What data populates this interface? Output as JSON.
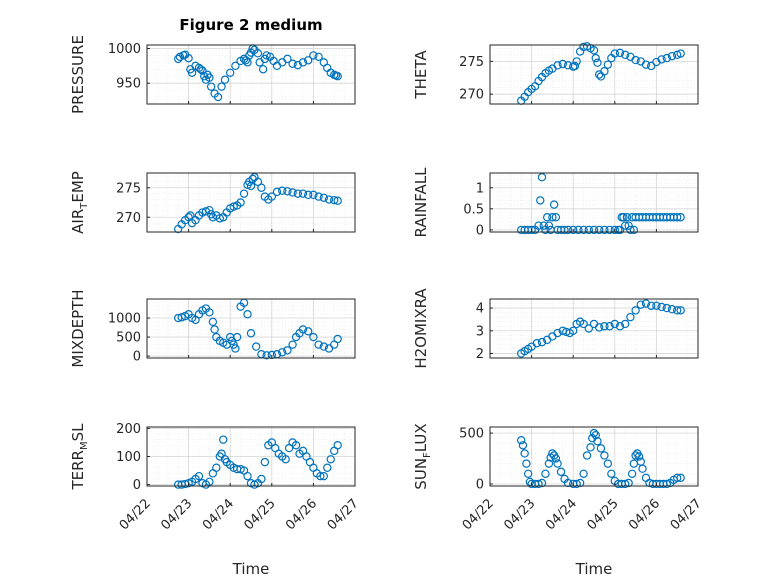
{
  "figure": {
    "title": "Figure 2 medium",
    "x_label": "Time",
    "x_ticks": [
      "04/22",
      "04/23",
      "04/24",
      "04/25",
      "04/26",
      "04/27"
    ]
  },
  "colors": {
    "marker": "#0072BD",
    "axis": "#262626",
    "grid": "#d6d6d6",
    "minor_grid": "#e6e6e6"
  },
  "chart_data": [
    {
      "type": "scatter",
      "marker": "circle",
      "ylabel": "PRESSURE",
      "ylim": [
        920,
        1005
      ],
      "yticks": [
        950,
        1000
      ],
      "grid": true,
      "minor_grid": true,
      "x": [
        "04/22 18:00",
        "04/22 19:00",
        "04/22 21:00",
        "04/22 22:00",
        "04/23 00:00",
        "04/23 01:00",
        "04/23 02:00",
        "04/23 04:00",
        "04/23 06:00",
        "04/23 07:00",
        "04/23 08:00",
        "04/23 09:00",
        "04/23 10:00",
        "04/23 11:00",
        "04/23 12:00",
        "04/23 13:00",
        "04/23 15:00",
        "04/23 17:00",
        "04/23 19:00",
        "04/23 21:00",
        "04/24 00:00",
        "04/24 03:00",
        "04/24 06:00",
        "04/24 08:00",
        "04/24 09:00",
        "04/24 10:00",
        "04/24 11:00",
        "04/24 12:00",
        "04/24 13:00",
        "04/24 14:00",
        "04/24 16:00",
        "04/24 17:00",
        "04/24 19:00",
        "04/24 20:00",
        "04/24 21:00",
        "04/24 23:00",
        "04/25 01:00",
        "04/25 03:00",
        "04/25 06:00",
        "04/25 09:00",
        "04/25 12:00",
        "04/25 15:00",
        "04/25 18:00",
        "04/25 21:00",
        "04/26 00:00",
        "04/26 03:00",
        "04/26 06:00",
        "04/26 08:00",
        "04/26 10:00",
        "04/26 12:00",
        "04/26 13:00",
        "04/26 14:00"
      ],
      "y": [
        985,
        988,
        990,
        991,
        986,
        970,
        965,
        975,
        972,
        970,
        968,
        960,
        955,
        962,
        958,
        945,
        935,
        930,
        945,
        955,
        965,
        975,
        982,
        985,
        983,
        980,
        990,
        994,
        1000,
        998,
        993,
        980,
        970,
        985,
        990,
        988,
        982,
        975,
        980,
        985,
        978,
        976,
        980,
        983,
        990,
        988,
        980,
        972,
        965,
        962,
        961,
        960
      ]
    },
    {
      "type": "scatter",
      "marker": "circle",
      "ylabel": "THETA",
      "ylim": [
        268.5,
        277.5
      ],
      "yticks": [
        270,
        275
      ],
      "grid": true,
      "minor_grid": true,
      "x": [
        "04/22 18:00",
        "04/22 20:00",
        "04/22 22:00",
        "04/23 00:00",
        "04/23 02:00",
        "04/23 04:00",
        "04/23 06:00",
        "04/23 08:00",
        "04/23 10:00",
        "04/23 12:00",
        "04/23 15:00",
        "04/23 18:00",
        "04/23 21:00",
        "04/24 00:00",
        "04/24 01:00",
        "04/24 02:00",
        "04/24 04:00",
        "04/24 06:00",
        "04/24 08:00",
        "04/24 10:00",
        "04/24 12:00",
        "04/24 13:00",
        "04/24 14:00",
        "04/24 15:00",
        "04/24 16:00",
        "04/24 18:00",
        "04/24 20:00",
        "04/24 22:00",
        "04/25 00:00",
        "04/25 03:00",
        "04/25 06:00",
        "04/25 09:00",
        "04/25 12:00",
        "04/25 15:00",
        "04/25 18:00",
        "04/25 21:00",
        "04/26 00:00",
        "04/26 03:00",
        "04/26 06:00",
        "04/26 09:00",
        "04/26 12:00",
        "04/26 14:00"
      ],
      "y": [
        269.0,
        269.6,
        270.3,
        270.8,
        271.2,
        272.0,
        272.6,
        273.2,
        273.6,
        273.9,
        274.4,
        274.6,
        274.4,
        274.2,
        274.3,
        275.0,
        276.5,
        277.2,
        277.3,
        277.0,
        276.7,
        275.5,
        274.8,
        273.0,
        272.7,
        273.5,
        274.5,
        275.5,
        276.2,
        276.3,
        276.0,
        275.7,
        275.2,
        275.0,
        274.5,
        274.3,
        274.9,
        275.3,
        275.5,
        275.8,
        276.0,
        276.2
      ]
    },
    {
      "type": "scatter",
      "marker": "circle",
      "ylabel": "AIR_TEMP",
      "ylim": [
        267.5,
        277.5
      ],
      "yticks": [
        270,
        275
      ],
      "grid": true,
      "minor_grid": true,
      "x": [
        "04/22 18:00",
        "04/22 20:00",
        "04/22 22:00",
        "04/23 00:00",
        "04/23 01:00",
        "04/23 02:00",
        "04/23 04:00",
        "04/23 06:00",
        "04/23 08:00",
        "04/23 10:00",
        "04/23 12:00",
        "04/23 13:00",
        "04/23 14:00",
        "04/23 16:00",
        "04/23 18:00",
        "04/23 20:00",
        "04/23 22:00",
        "04/24 00:00",
        "04/24 02:00",
        "04/24 04:00",
        "04/24 06:00",
        "04/24 08:00",
        "04/24 10:00",
        "04/24 11:00",
        "04/24 12:00",
        "04/24 13:00",
        "04/24 14:00",
        "04/24 16:00",
        "04/24 18:00",
        "04/24 20:00",
        "04/24 22:00",
        "04/25 00:00",
        "04/25 03:00",
        "04/25 06:00",
        "04/25 09:00",
        "04/25 12:00",
        "04/25 15:00",
        "04/25 18:00",
        "04/25 21:00",
        "04/26 00:00",
        "04/26 03:00",
        "04/26 06:00",
        "04/26 09:00",
        "04/26 12:00",
        "04/26 14:00"
      ],
      "y": [
        268.0,
        268.8,
        269.5,
        270.0,
        270.3,
        269.0,
        269.5,
        270.3,
        270.8,
        271.0,
        271.2,
        270.5,
        270.0,
        270.3,
        269.8,
        270.0,
        270.8,
        271.5,
        271.8,
        272.0,
        272.5,
        274.0,
        275.5,
        276.0,
        275.3,
        276.5,
        276.8,
        276.0,
        275.0,
        273.5,
        273.0,
        273.5,
        274.3,
        274.5,
        274.4,
        274.2,
        274.0,
        274.0,
        273.8,
        273.8,
        273.5,
        273.3,
        273.0,
        272.9,
        272.8
      ]
    },
    {
      "type": "scatter",
      "marker": "circle",
      "ylabel": "RAINFALL",
      "ylim": [
        -0.05,
        1.35
      ],
      "yticks": [
        0,
        0.5,
        1
      ],
      "grid": true,
      "minor_grid": true,
      "x": [
        "04/22 18:00",
        "04/22 20:00",
        "04/22 22:00",
        "04/23 00:00",
        "04/23 02:00",
        "04/23 04:00",
        "04/23 05:00",
        "04/23 06:00",
        "04/23 07:00",
        "04/23 08:00",
        "04/23 09:00",
        "04/23 10:00",
        "04/23 11:00",
        "04/23 12:00",
        "04/23 13:00",
        "04/23 14:00",
        "04/23 15:00",
        "04/23 17:00",
        "04/23 19:00",
        "04/23 21:00",
        "04/24 00:00",
        "04/24 03:00",
        "04/24 06:00",
        "04/24 09:00",
        "04/24 12:00",
        "04/24 15:00",
        "04/24 18:00",
        "04/24 21:00",
        "04/25 00:00",
        "04/25 02:00",
        "04/25 03:00",
        "04/25 04:00",
        "04/25 05:00",
        "04/25 06:00",
        "04/25 07:00",
        "04/25 08:00",
        "04/25 09:00",
        "04/25 10:00",
        "04/25 11:00",
        "04/25 12:00",
        "04/25 14:00",
        "04/25 16:00",
        "04/25 18:00",
        "04/25 20:00",
        "04/25 22:00",
        "04/26 00:00",
        "04/26 02:00",
        "04/26 04:00",
        "04/26 06:00",
        "04/26 08:00",
        "04/26 10:00",
        "04/26 12:00",
        "04/26 14:00"
      ],
      "y": [
        0,
        0,
        0,
        0,
        0,
        0.1,
        0.7,
        1.25,
        0.1,
        0,
        0.3,
        0.1,
        0,
        0.3,
        0.6,
        0.3,
        0,
        0,
        0,
        0,
        0,
        0,
        0,
        0,
        0,
        0,
        0,
        0,
        0,
        0,
        0,
        0.3,
        0.3,
        0.1,
        0.3,
        0.1,
        0,
        0.3,
        0,
        0.3,
        0.3,
        0.3,
        0.3,
        0.3,
        0.3,
        0.3,
        0.3,
        0.3,
        0.3,
        0.3,
        0.3,
        0.3,
        0.3
      ]
    },
    {
      "type": "scatter",
      "marker": "circle",
      "ylabel": "MIXDEPTH",
      "ylim": [
        -50,
        1500
      ],
      "yticks": [
        0,
        500,
        1000
      ],
      "grid": true,
      "minor_grid": true,
      "x": [
        "04/22 18:00",
        "04/22 20:00",
        "04/22 22:00",
        "04/23 00:00",
        "04/23 02:00",
        "04/23 04:00",
        "04/23 06:00",
        "04/23 08:00",
        "04/23 10:00",
        "04/23 12:00",
        "04/23 14:00",
        "04/23 15:00",
        "04/23 16:00",
        "04/23 18:00",
        "04/23 20:00",
        "04/23 22:00",
        "04/24 00:00",
        "04/24 01:00",
        "04/24 02:00",
        "04/24 03:00",
        "04/24 04:00",
        "04/24 06:00",
        "04/24 08:00",
        "04/24 10:00",
        "04/24 12:00",
        "04/24 15:00",
        "04/24 18:00",
        "04/24 21:00",
        "04/25 00:00",
        "04/25 03:00",
        "04/25 06:00",
        "04/25 09:00",
        "04/25 12:00",
        "04/25 14:00",
        "04/25 16:00",
        "04/25 18:00",
        "04/25 21:00",
        "04/26 00:00",
        "04/26 03:00",
        "04/26 06:00",
        "04/26 09:00",
        "04/26 12:00",
        "04/26 14:00"
      ],
      "y": [
        1000,
        1020,
        1050,
        1100,
        1000,
        950,
        1100,
        1200,
        1250,
        1150,
        900,
        700,
        500,
        400,
        350,
        300,
        500,
        400,
        300,
        200,
        500,
        1300,
        1400,
        1100,
        600,
        250,
        50,
        20,
        30,
        50,
        100,
        150,
        300,
        500,
        600,
        700,
        650,
        500,
        300,
        250,
        200,
        300,
        450
      ]
    },
    {
      "type": "scatter",
      "marker": "circle",
      "ylabel": "H2OMIXRA",
      "ylim": [
        1.8,
        4.4
      ],
      "yticks": [
        2,
        3,
        4
      ],
      "grid": true,
      "minor_grid": true,
      "x": [
        "04/22 18:00",
        "04/22 20:00",
        "04/22 22:00",
        "04/23 00:00",
        "04/23 03:00",
        "04/23 06:00",
        "04/23 09:00",
        "04/23 12:00",
        "04/23 15:00",
        "04/23 18:00",
        "04/23 20:00",
        "04/23 22:00",
        "04/24 00:00",
        "04/24 02:00",
        "04/24 04:00",
        "04/24 06:00",
        "04/24 09:00",
        "04/24 12:00",
        "04/24 15:00",
        "04/24 18:00",
        "04/24 21:00",
        "04/25 00:00",
        "04/25 03:00",
        "04/25 06:00",
        "04/25 09:00",
        "04/25 12:00",
        "04/25 15:00",
        "04/25 18:00",
        "04/25 21:00",
        "04/26 00:00",
        "04/26 03:00",
        "04/26 06:00",
        "04/26 09:00",
        "04/26 12:00",
        "04/26 14:00"
      ],
      "y": [
        2.0,
        2.1,
        2.2,
        2.3,
        2.45,
        2.5,
        2.6,
        2.75,
        2.9,
        3.0,
        2.95,
        2.9,
        3.0,
        3.3,
        3.4,
        3.3,
        3.1,
        3.3,
        3.15,
        3.2,
        3.2,
        3.3,
        3.2,
        3.3,
        3.6,
        3.9,
        4.15,
        4.2,
        4.1,
        4.1,
        4.05,
        4.0,
        3.95,
        3.9,
        3.9
      ]
    },
    {
      "type": "scatter",
      "marker": "circle",
      "ylabel": "TERR_MSL",
      "ylim": [
        -5,
        205
      ],
      "yticks": [
        0,
        100,
        200
      ],
      "grid": true,
      "minor_grid": true,
      "x": [
        "04/22 18:00",
        "04/22 20:00",
        "04/22 22:00",
        "04/23 00:00",
        "04/23 02:00",
        "04/23 04:00",
        "04/23 06:00",
        "04/23 08:00",
        "04/23 10:00",
        "04/23 12:00",
        "04/23 14:00",
        "04/23 16:00",
        "04/23 18:00",
        "04/23 19:00",
        "04/23 20:00",
        "04/23 21:00",
        "04/23 22:00",
        "04/24 00:00",
        "04/24 02:00",
        "04/24 04:00",
        "04/24 06:00",
        "04/24 08:00",
        "04/24 10:00",
        "04/24 12:00",
        "04/24 14:00",
        "04/24 16:00",
        "04/24 18:00",
        "04/24 20:00",
        "04/24 22:00",
        "04/25 00:00",
        "04/25 02:00",
        "04/25 04:00",
        "04/25 06:00",
        "04/25 08:00",
        "04/25 10:00",
        "04/25 12:00",
        "04/25 14:00",
        "04/25 16:00",
        "04/25 18:00",
        "04/25 20:00",
        "04/25 22:00",
        "04/26 00:00",
        "04/26 02:00",
        "04/26 04:00",
        "04/26 06:00",
        "04/26 08:00",
        "04/26 10:00",
        "04/26 12:00",
        "04/26 14:00"
      ],
      "y": [
        0,
        0,
        2,
        5,
        10,
        20,
        30,
        5,
        0,
        10,
        40,
        60,
        100,
        110,
        160,
        90,
        80,
        70,
        60,
        55,
        55,
        50,
        30,
        5,
        0,
        5,
        20,
        80,
        140,
        150,
        130,
        110,
        100,
        90,
        130,
        150,
        140,
        110,
        120,
        100,
        80,
        60,
        40,
        30,
        30,
        60,
        90,
        120,
        140
      ]
    },
    {
      "type": "scatter",
      "marker": "circle",
      "ylabel": "SUN_FLUX",
      "ylim": [
        -20,
        560
      ],
      "yticks": [
        0,
        500
      ],
      "grid": true,
      "minor_grid": true,
      "x": [
        "04/22 18:00",
        "04/22 19:00",
        "04/22 20:00",
        "04/22 21:00",
        "04/22 22:00",
        "04/22 23:00",
        "04/23 00:00",
        "04/23 02:00",
        "04/23 04:00",
        "04/23 06:00",
        "04/23 08:00",
        "04/23 10:00",
        "04/23 11:00",
        "04/23 12:00",
        "04/23 13:00",
        "04/23 14:00",
        "04/23 15:00",
        "04/23 17:00",
        "04/23 19:00",
        "04/23 21:00",
        "04/24 00:00",
        "04/24 02:00",
        "04/24 04:00",
        "04/24 06:00",
        "04/24 08:00",
        "04/24 10:00",
        "04/24 11:00",
        "04/24 12:00",
        "04/24 13:00",
        "04/24 14:00",
        "04/24 16:00",
        "04/24 18:00",
        "04/24 20:00",
        "04/24 22:00",
        "04/25 00:00",
        "04/25 02:00",
        "04/25 04:00",
        "04/25 06:00",
        "04/25 08:00",
        "04/25 10:00",
        "04/25 11:00",
        "04/25 12:00",
        "04/25 13:00",
        "04/25 14:00",
        "04/25 15:00",
        "04/25 16:00",
        "04/25 18:00",
        "04/25 20:00",
        "04/25 22:00",
        "04/26 00:00",
        "04/26 02:00",
        "04/26 04:00",
        "04/26 06:00",
        "04/26 08:00",
        "04/26 10:00",
        "04/26 12:00",
        "04/26 14:00"
      ],
      "y": [
        430,
        380,
        300,
        200,
        100,
        20,
        0,
        0,
        0,
        10,
        100,
        200,
        260,
        300,
        280,
        250,
        200,
        120,
        50,
        10,
        0,
        0,
        10,
        100,
        280,
        360,
        450,
        500,
        480,
        420,
        350,
        280,
        200,
        100,
        30,
        0,
        0,
        0,
        10,
        100,
        200,
        280,
        300,
        270,
        220,
        150,
        60,
        10,
        0,
        0,
        0,
        0,
        0,
        10,
        40,
        60,
        60
      ]
    }
  ]
}
